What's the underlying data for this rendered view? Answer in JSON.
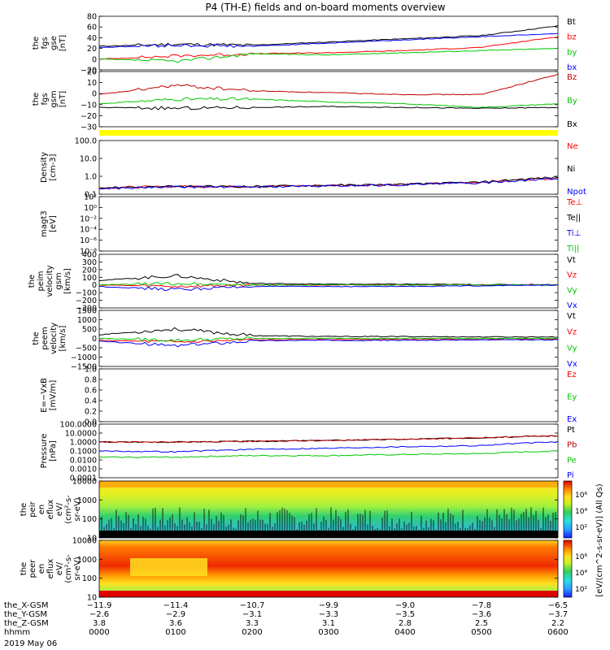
{
  "figure": {
    "title": "P4 (TH-E) fields and on-board moments overview",
    "date_label": "2019 May 06"
  },
  "panels": [
    {
      "id": "fgs-gse",
      "ylabel": [
        "the",
        "fgs",
        "gse",
        "[nT]"
      ],
      "yticks": [
        "80",
        "60",
        "40",
        "20",
        "0",
        "−20"
      ],
      "legend": [
        {
          "text": "Bt",
          "color": "#000000"
        },
        {
          "text": "bz",
          "color": "#ff0000"
        },
        {
          "text": "by",
          "color": "#00c800"
        },
        {
          "text": "bx",
          "color": "#0000ff"
        }
      ]
    },
    {
      "id": "fgs-gsm",
      "ylabel": [
        "the",
        "fgs",
        "gsm",
        "[nT]"
      ],
      "yticks": [
        "20",
        "10",
        "0",
        "−10",
        "−20",
        "−30"
      ],
      "legend": [
        {
          "text": "Bz",
          "color": "#c00000"
        },
        {
          "text": "By",
          "color": "#00c800"
        },
        {
          "text": "Bx",
          "color": "#000000"
        }
      ]
    },
    {
      "id": "flag-bar",
      "ylabel": [],
      "yticks": [],
      "legend": []
    },
    {
      "id": "density",
      "ylabel": [
        "Density",
        "[cm-3]"
      ],
      "yticks": [
        "100.0",
        "10.0",
        "1.0",
        "0.1"
      ],
      "legend": [
        {
          "text": "Ne",
          "color": "#ff0000"
        },
        {
          "text": "Ni",
          "color": "#000000"
        },
        {
          "text": "Npot",
          "color": "#0000ff"
        }
      ]
    },
    {
      "id": "temperature",
      "ylabel": [
        "magt3",
        "[eV]"
      ],
      "yticks": [
        "10²",
        "10⁰",
        "10⁻²",
        "10⁻⁴",
        "10⁻⁶",
        "10⁻⁸"
      ],
      "legend": [
        {
          "text": "Te⊥",
          "color": "#ff0000"
        },
        {
          "text": "Te||",
          "color": "#000000"
        },
        {
          "text": "Ti⊥",
          "color": "#0000ff"
        },
        {
          "text": "Ti||",
          "color": "#00c800"
        }
      ]
    },
    {
      "id": "peim-velocity",
      "ylabel": [
        "the",
        "peim",
        "velocity",
        "gsm",
        "[km/s]"
      ],
      "yticks": [
        "400",
        "300",
        "200",
        "100",
        "0",
        "−100",
        "−200",
        "−300"
      ],
      "legend": [
        {
          "text": "Vt",
          "color": "#000000"
        },
        {
          "text": "Vz",
          "color": "#ff0000"
        },
        {
          "text": "Vy",
          "color": "#00c800"
        },
        {
          "text": "Vx",
          "color": "#0000ff"
        }
      ]
    },
    {
      "id": "peem-velocity",
      "ylabel": [
        "the",
        "peem",
        "velocity",
        "[km/s]"
      ],
      "yticks": [
        "1500",
        "1000",
        "500",
        "0",
        "−500",
        "−1000",
        "−1500"
      ],
      "legend": [
        {
          "text": "Vt",
          "color": "#000000"
        },
        {
          "text": "Vz",
          "color": "#ff0000"
        },
        {
          "text": "Vy",
          "color": "#00c800"
        },
        {
          "text": "Vx",
          "color": "#0000ff"
        }
      ]
    },
    {
      "id": "e-field",
      "ylabel": [
        "E=−VxB",
        "[mV/m]"
      ],
      "yticks": [
        "1.0",
        "0.8",
        "0.6",
        "0.4",
        "0.2",
        "0.0"
      ],
      "legend": [
        {
          "text": "Ez",
          "color": "#ff0000"
        },
        {
          "text": "Ey",
          "color": "#00c800"
        },
        {
          "text": "Ex",
          "color": "#0000ff"
        }
      ]
    },
    {
      "id": "pressure",
      "ylabel": [
        "Pressure",
        "[nPa]"
      ],
      "yticks": [
        "100.0000",
        "10.0000",
        "1.0000",
        "0.1000",
        "0.0100",
        "0.0010",
        "0.0001"
      ],
      "legend": [
        {
          "text": "Pt",
          "color": "#000000"
        },
        {
          "text": "Pb",
          "color": "#c00000"
        },
        {
          "text": "Pe",
          "color": "#00c800"
        },
        {
          "text": "Pi",
          "color": "#0000ff"
        }
      ]
    },
    {
      "id": "peir-spectrogram",
      "ylabel": [
        "the",
        "peir",
        "en",
        "eflux",
        "eV/",
        "(cm²-s-",
        "sr-eV)"
      ],
      "yticks": [
        "10000",
        "1000",
        "100",
        "10"
      ],
      "legend": []
    },
    {
      "id": "peer-spectrogram",
      "ylabel": [
        "the",
        "peer",
        "en",
        "eflux",
        "eV/",
        "(cm²-s-",
        "sr-eV)"
      ],
      "yticks": [
        "10000",
        "1000",
        "100",
        "10"
      ],
      "legend": []
    }
  ],
  "colorbar": {
    "label": "[eV/(cm^2-s-sr-eV)] (All Qs)",
    "ticks_upper": [
      "10⁶",
      "10⁴",
      "10²"
    ],
    "ticks_lower": [
      "10⁶",
      "10⁴",
      "10²"
    ]
  },
  "xaxis": {
    "row_labels": [
      "the_X-GSM",
      "the_Y-GSM",
      "the_Z-GSM",
      "hhmm"
    ],
    "columns": [
      {
        "x": "−11.9",
        "y": "−2.6",
        "z": "3.8",
        "hhmm": "0000"
      },
      {
        "x": "−11.4",
        "y": "−2.9",
        "z": "3.6",
        "hhmm": "0100"
      },
      {
        "x": "−10.7",
        "y": "−3.1",
        "z": "3.3",
        "hhmm": "0200"
      },
      {
        "x": "−9.9",
        "y": "−3.3",
        "z": "3.1",
        "hhmm": "0300"
      },
      {
        "x": "−9.0",
        "y": "−3.5",
        "z": "2.8",
        "hhmm": "0400"
      },
      {
        "x": "−7.8",
        "y": "−3.6",
        "z": "2.5",
        "hhmm": "0500"
      },
      {
        "x": "−6.5",
        "y": "−3.7",
        "z": "2.2",
        "hhmm": "0600"
      }
    ]
  },
  "chart_data": {
    "type": "line",
    "title": "P4 (TH-E) fields and on-board moments overview",
    "x": [
      "0000",
      "0100",
      "0200",
      "0300",
      "0400",
      "0500",
      "0600"
    ],
    "panels": [
      {
        "panel": "fgs-gse",
        "unit": "nT",
        "ylim": [
          -20,
          80
        ],
        "series": [
          {
            "name": "Bt",
            "color": "#000000",
            "values": [
              24,
              28,
              26,
              32,
              38,
              44,
              62
            ]
          },
          {
            "name": "bz",
            "color": "#ff0000",
            "values": [
              0,
              6,
              10,
              12,
              16,
              22,
              42
            ]
          },
          {
            "name": "by",
            "color": "#00c800",
            "values": [
              0,
              -4,
              10,
              8,
              12,
              16,
              20
            ]
          },
          {
            "name": "bx",
            "color": "#0000ff",
            "values": [
              22,
              26,
              24,
              30,
              36,
              42,
              48
            ]
          }
        ]
      },
      {
        "panel": "fgs-gsm",
        "unit": "nT",
        "ylim": [
          -35,
          25
        ],
        "series": [
          {
            "name": "Bz",
            "color": "#c00000",
            "values": [
              0,
              10,
              4,
              2,
              0,
              0,
              22
            ]
          },
          {
            "name": "By",
            "color": "#00c800",
            "values": [
              -10,
              -5,
              -5,
              -8,
              -10,
              -14,
              -10
            ]
          },
          {
            "name": "Bx",
            "color": "#000000",
            "values": [
              -14,
              -15,
              -14,
              -13,
              -14,
              -15,
              -14
            ]
          }
        ]
      },
      {
        "panel": "density",
        "unit": "cm-3",
        "yscale": "log",
        "ylim": [
          0.1,
          200
        ],
        "series": [
          {
            "name": "Ne",
            "color": "#ff0000",
            "values": [
              0.25,
              0.3,
              0.3,
              0.35,
              0.4,
              0.55,
              1.0
            ]
          },
          {
            "name": "Ni",
            "color": "#000000",
            "values": [
              0.25,
              0.3,
              0.3,
              0.35,
              0.4,
              0.55,
              1.1
            ]
          },
          {
            "name": "Npot",
            "color": "#0000ff",
            "values": [
              0.22,
              0.28,
              0.28,
              0.32,
              0.38,
              0.5,
              0.9
            ]
          }
        ]
      },
      {
        "panel": "peim-velocity",
        "unit": "km/s",
        "ylim": [
          -300,
          400
        ],
        "series": [
          {
            "name": "Vt",
            "color": "#000000",
            "values": [
              60,
              120,
              20,
              10,
              10,
              5,
              5
            ]
          },
          {
            "name": "Vz",
            "color": "#ff0000",
            "values": [
              0,
              -20,
              0,
              0,
              0,
              0,
              0
            ]
          },
          {
            "name": "Vy",
            "color": "#00c800",
            "values": [
              0,
              20,
              0,
              0,
              0,
              0,
              0
            ]
          },
          {
            "name": "Vx",
            "color": "#0000ff",
            "values": [
              -20,
              -60,
              -20,
              -20,
              -20,
              -10,
              0
            ]
          }
        ]
      },
      {
        "panel": "peem-velocity",
        "unit": "km/s",
        "ylim": [
          -1500,
          1500
        ],
        "series": [
          {
            "name": "Vt",
            "color": "#000000",
            "values": [
              200,
              500,
              150,
              100,
              100,
              80,
              80
            ]
          },
          {
            "name": "Vz",
            "color": "#ff0000",
            "values": [
              -100,
              -200,
              -80,
              -60,
              -60,
              -50,
              -50
            ]
          },
          {
            "name": "Vy",
            "color": "#00c800",
            "values": [
              0,
              -100,
              0,
              0,
              0,
              0,
              0
            ]
          },
          {
            "name": "Vx",
            "color": "#0000ff",
            "values": [
              -150,
              -400,
              -120,
              -100,
              -100,
              -80,
              -80
            ]
          }
        ]
      },
      {
        "panel": "pressure",
        "unit": "nPa",
        "yscale": "log",
        "ylim": [
          0.0001,
          100
        ],
        "series": [
          {
            "name": "Pt",
            "color": "#000000",
            "values": [
              1.0,
              1.0,
              1.2,
              1.5,
              2.0,
              3.0,
              5.0
            ]
          },
          {
            "name": "Pb",
            "color": "#c00000",
            "values": [
              1.0,
              1.0,
              1.2,
              1.5,
              2.0,
              3.0,
              5.0
            ]
          },
          {
            "name": "Pe",
            "color": "#00c800",
            "values": [
              0.02,
              0.02,
              0.03,
              0.03,
              0.04,
              0.05,
              0.1
            ]
          },
          {
            "name": "Pi",
            "color": "#0000ff",
            "values": [
              0.1,
              0.08,
              0.15,
              0.2,
              0.3,
              0.4,
              1.0
            ]
          }
        ]
      }
    ]
  }
}
